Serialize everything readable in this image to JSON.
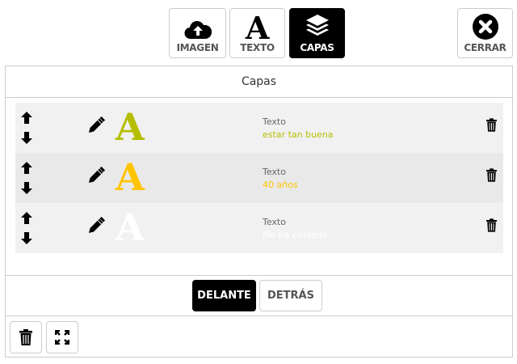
{
  "toolbar": {
    "imagen": "IMAGEN",
    "texto": "TEXTO",
    "capas": "CAPAS",
    "cerrar": "CERRAR",
    "active": "capas"
  },
  "panel": {
    "title": "Capas"
  },
  "layers": [
    {
      "type": "Texto",
      "text": "estar tan buena",
      "color": "#b5bf00"
    },
    {
      "type": "Texto",
      "text": "40 años",
      "color": "#ffc400"
    },
    {
      "type": "Texto",
      "text": "Me ha costado",
      "color": "#ffffff"
    }
  ],
  "order": {
    "front": "DELANTE",
    "back": "DETRÁS",
    "active": "front"
  },
  "glyph": "A"
}
